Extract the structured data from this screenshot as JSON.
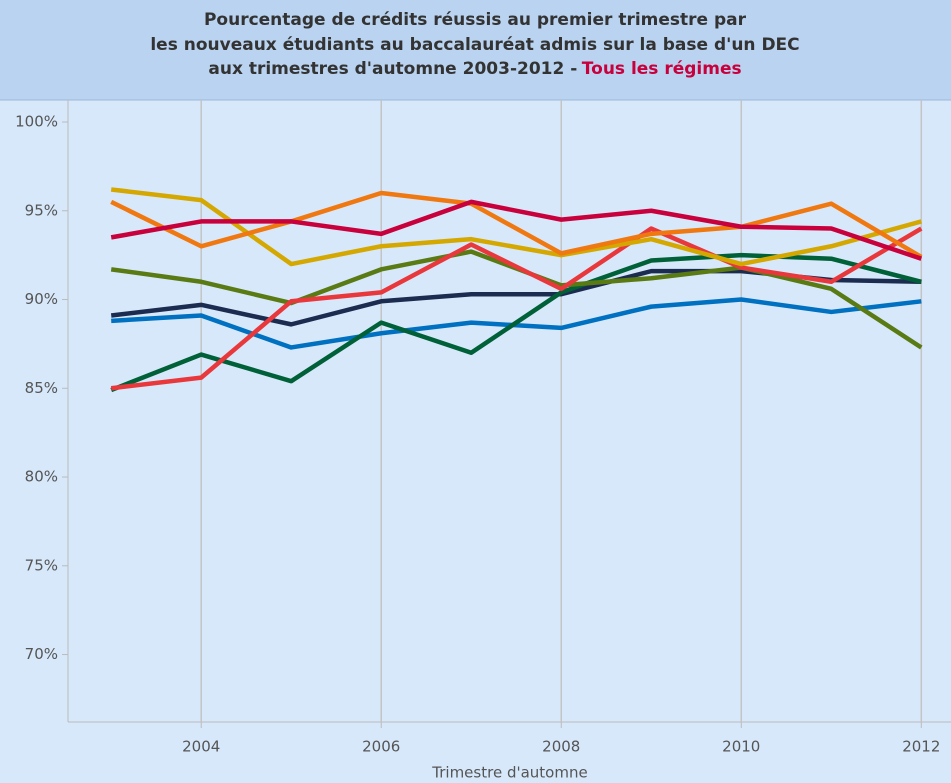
{
  "chart_data": {
    "type": "line",
    "title_lines": [
      "Pourcentage de crédits réussis au premier trimestre par",
      "les nouveaux étudiants au baccalauréat admis sur la base d'un DEC",
      "aux trimestres d'automne 2003-2012 -"
    ],
    "title_highlight": "Tous les régimes",
    "title_highlight_color": "#c8003c",
    "x_label": "Trimestre d'automne",
    "x": [
      2003,
      2004,
      2005,
      2006,
      2007,
      2008,
      2009,
      2010,
      2011,
      2012
    ],
    "xlim": [
      2002.52,
      2012.33
    ],
    "xticks": [
      2004,
      2006,
      2008,
      2010,
      2012
    ],
    "ylim": [
      66.2,
      101.24
    ],
    "yticks": [
      {
        "value": 70,
        "label": "70%"
      },
      {
        "value": 75,
        "label": "75%"
      },
      {
        "value": 80,
        "label": "80%"
      },
      {
        "value": 85,
        "label": "85%"
      },
      {
        "value": 90,
        "label": "90%"
      },
      {
        "value": 95,
        "label": "95%"
      },
      {
        "value": 100,
        "label": "100%"
      }
    ],
    "grid": "x",
    "series": [
      {
        "color": "#0070c0",
        "values": [
          88.8,
          89.1,
          87.3,
          88.1,
          88.7,
          88.4,
          89.6,
          90.0,
          89.3,
          89.9
        ]
      },
      {
        "color": "#1c2c50",
        "values": [
          89.1,
          89.7,
          88.6,
          89.9,
          90.3,
          90.3,
          91.6,
          91.6,
          91.1,
          91.0
        ]
      },
      {
        "color": "#006038",
        "values": [
          84.9,
          86.9,
          85.4,
          88.7,
          87.0,
          90.4,
          92.2,
          92.5,
          92.3,
          91.0
        ]
      },
      {
        "color": "#5a7a14",
        "values": [
          91.7,
          91.0,
          89.8,
          91.7,
          92.7,
          90.8,
          91.2,
          91.8,
          90.6,
          87.3
        ]
      },
      {
        "color": "#e8383c",
        "values": [
          85.0,
          85.6,
          89.9,
          90.4,
          93.1,
          90.6,
          94.0,
          91.8,
          91.0,
          94.0
        ]
      },
      {
        "color": "#d4a800",
        "values": [
          96.2,
          95.6,
          92.0,
          93.0,
          93.4,
          92.5,
          93.4,
          92.0,
          93.0,
          94.4
        ]
      },
      {
        "color": "#f07810",
        "values": [
          95.5,
          93.0,
          94.4,
          96.0,
          95.4,
          92.6,
          93.7,
          94.1,
          95.4,
          92.4
        ]
      },
      {
        "color": "#c8003c",
        "values": [
          93.5,
          94.4,
          94.4,
          93.7,
          95.5,
          94.5,
          95.0,
          94.1,
          94.0,
          92.3
        ]
      }
    ]
  }
}
